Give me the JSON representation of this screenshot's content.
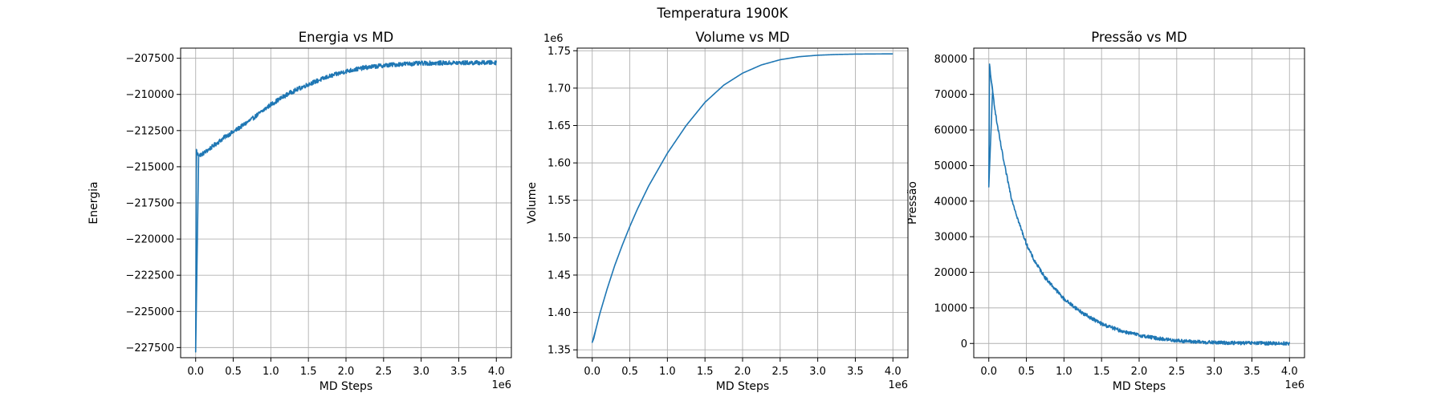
{
  "figure": {
    "title": "Temperatura 1900K"
  },
  "colors": {
    "series": "#1f77b4"
  },
  "chart_data": [
    {
      "type": "line",
      "title": "Energia vs MD",
      "xlabel": "MD Steps",
      "ylabel": "Energia",
      "x_offset_label": "1e6",
      "y_offset_label": "",
      "xlim": [
        -0.2,
        4.2
      ],
      "ylim": [
        -228200,
        -206800
      ],
      "x_scale": 1000000,
      "grid": true,
      "xticks": [
        0,
        0.5,
        1,
        1.5,
        2,
        2.5,
        3,
        3.5,
        4
      ],
      "xtick_labels": [
        "0.0",
        "0.5",
        "1.0",
        "1.5",
        "2.0",
        "2.5",
        "3.0",
        "3.5",
        "4.0"
      ],
      "yticks": [
        -227500,
        -225000,
        -222500,
        -220000,
        -217500,
        -215000,
        -212500,
        -210000,
        -207500
      ],
      "ytick_labels": [
        "−227500",
        "−225000",
        "−222500",
        "−220000",
        "−217500",
        "−215000",
        "−212500",
        "−210000",
        "−207500"
      ],
      "noise": 150,
      "series": [
        {
          "x": [
            0,
            0.01,
            0.02,
            0.04,
            0.08,
            0.15,
            0.25,
            0.4,
            0.5,
            0.75,
            1.0,
            1.25,
            1.5,
            1.75,
            2.0,
            2.25,
            2.5,
            2.75,
            3.0,
            3.25,
            3.5,
            3.75,
            4.0
          ],
          "y": [
            -227800,
            -213800,
            -214100,
            -214200,
            -214150,
            -213900,
            -213500,
            -212900,
            -212600,
            -211700,
            -210700,
            -209900,
            -209300,
            -208800,
            -208400,
            -208150,
            -208000,
            -207900,
            -207850,
            -207830,
            -207820,
            -207810,
            -207800
          ]
        }
      ]
    },
    {
      "type": "line",
      "title": "Volume vs MD",
      "xlabel": "MD Steps",
      "ylabel": "Volume",
      "x_offset_label": "1e6",
      "y_offset_label": "1e6",
      "xlim": [
        -0.2,
        4.2
      ],
      "ylim": [
        1.3395,
        1.7535
      ],
      "x_scale": 1000000,
      "y_scale": 1000000,
      "grid": true,
      "xticks": [
        0,
        0.5,
        1,
        1.5,
        2,
        2.5,
        3,
        3.5,
        4
      ],
      "xtick_labels": [
        "0.0",
        "0.5",
        "1.0",
        "1.5",
        "2.0",
        "2.5",
        "3.0",
        "3.5",
        "4.0"
      ],
      "yticks": [
        1.35,
        1.4,
        1.45,
        1.5,
        1.55,
        1.6,
        1.65,
        1.7,
        1.75
      ],
      "ytick_labels": [
        "1.35",
        "1.40",
        "1.45",
        "1.50",
        "1.55",
        "1.60",
        "1.65",
        "1.70",
        "1.75"
      ],
      "noise": 0,
      "series": [
        {
          "x": [
            0,
            0.02,
            0.05,
            0.1,
            0.2,
            0.3,
            0.4,
            0.5,
            0.6,
            0.75,
            1.0,
            1.25,
            1.5,
            1.75,
            2.0,
            2.25,
            2.5,
            2.75,
            3.0,
            3.25,
            3.5,
            3.75,
            4.0
          ],
          "y": [
            1.36,
            1.365,
            1.378,
            1.398,
            1.432,
            1.463,
            1.49,
            1.515,
            1.538,
            1.569,
            1.613,
            1.65,
            1.681,
            1.704,
            1.72,
            1.731,
            1.738,
            1.742,
            1.744,
            1.745,
            1.7455,
            1.7457,
            1.7458
          ]
        }
      ]
    },
    {
      "type": "line",
      "title": "Pressão vs MD",
      "xlabel": "MD Steps",
      "ylabel": "Pressão",
      "x_offset_label": "1e6",
      "y_offset_label": "",
      "xlim": [
        -0.2,
        4.2
      ],
      "ylim": [
        -4000,
        83000
      ],
      "x_scale": 1000000,
      "grid": true,
      "xticks": [
        0,
        0.5,
        1,
        1.5,
        2,
        2.5,
        3,
        3.5,
        4
      ],
      "xtick_labels": [
        "0.0",
        "0.5",
        "1.0",
        "1.5",
        "2.0",
        "2.5",
        "3.0",
        "3.5",
        "4.0"
      ],
      "yticks": [
        0,
        10000,
        20000,
        30000,
        40000,
        50000,
        60000,
        70000,
        80000
      ],
      "ytick_labels": [
        "0",
        "10000",
        "20000",
        "30000",
        "40000",
        "50000",
        "60000",
        "70000",
        "80000"
      ],
      "noise": 500,
      "series": [
        {
          "x": [
            0,
            0.01,
            0.02,
            0.05,
            0.1,
            0.2,
            0.3,
            0.4,
            0.5,
            0.6,
            0.75,
            1.0,
            1.25,
            1.5,
            1.75,
            2.0,
            2.25,
            2.5,
            2.75,
            3.0,
            3.25,
            3.5,
            3.75,
            4.0
          ],
          "y": [
            44000,
            78500,
            76000,
            71000,
            63000,
            51000,
            41000,
            34000,
            28000,
            23500,
            18500,
            12500,
            8500,
            5500,
            3600,
            2300,
            1400,
            800,
            450,
            250,
            150,
            100,
            50,
            0
          ]
        }
      ]
    }
  ]
}
